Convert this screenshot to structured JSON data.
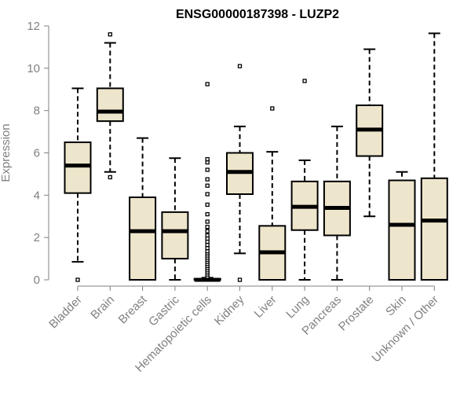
{
  "chart_data": {
    "type": "boxplot",
    "title": "ENSG00000187398 - LUZP2",
    "xlabel": "",
    "ylabel": "Expression",
    "ylim": [
      0,
      12
    ],
    "yticks": [
      0,
      2,
      4,
      6,
      8,
      10,
      12
    ],
    "box_fill": "#EEE6CC",
    "categories": [
      "Bladder",
      "Brain",
      "Breast",
      "Gastric",
      "Hematopoietic cells",
      "Kidney",
      "Liver",
      "Lung",
      "Pancreas",
      "Prostate",
      "Skin",
      "Unknown / Other"
    ],
    "boxes": [
      {
        "category": "Bladder",
        "q1": 4.1,
        "median": 5.4,
        "q3": 6.5,
        "whisker_low": 0.85,
        "whisker_high": 9.05,
        "outliers": [
          0.0
        ]
      },
      {
        "category": "Brain",
        "q1": 7.5,
        "median": 7.95,
        "q3": 9.05,
        "whisker_low": 5.1,
        "whisker_high": 11.2,
        "outliers": [
          4.85,
          11.6
        ]
      },
      {
        "category": "Breast",
        "q1": 0.0,
        "median": 2.3,
        "q3": 3.9,
        "whisker_low": 0.0,
        "whisker_high": 6.7,
        "outliers": []
      },
      {
        "category": "Gastric",
        "q1": 1.0,
        "median": 2.3,
        "q3": 3.2,
        "whisker_low": 0.0,
        "whisker_high": 5.75,
        "outliers": []
      },
      {
        "category": "Hematopoietic cells",
        "q1": 0.0,
        "median": 0.0,
        "q3": 0.05,
        "whisker_low": 0.0,
        "whisker_high": 0.1,
        "outliers": [
          0.15,
          0.25,
          0.35,
          0.45,
          0.55,
          0.65,
          0.75,
          0.85,
          0.95,
          1.05,
          1.15,
          1.25,
          1.35,
          1.5,
          1.65,
          1.8,
          1.95,
          2.1,
          2.3,
          2.5,
          2.75,
          3.1,
          3.55,
          4.05,
          4.45,
          4.75,
          5.2,
          5.55,
          5.7,
          9.25
        ]
      },
      {
        "category": "Kidney",
        "q1": 4.05,
        "median": 5.1,
        "q3": 6.0,
        "whisker_low": 1.25,
        "whisker_high": 7.25,
        "outliers": [
          0.0,
          10.1
        ]
      },
      {
        "category": "Liver",
        "q1": 0.0,
        "median": 1.3,
        "q3": 2.55,
        "whisker_low": 0.0,
        "whisker_high": 6.05,
        "outliers": [
          8.1
        ]
      },
      {
        "category": "Lung",
        "q1": 2.35,
        "median": 3.45,
        "q3": 4.65,
        "whisker_low": 0.0,
        "whisker_high": 5.65,
        "outliers": [
          9.4
        ]
      },
      {
        "category": "Pancreas",
        "q1": 2.1,
        "median": 3.4,
        "q3": 4.65,
        "whisker_low": 0.0,
        "whisker_high": 7.25,
        "outliers": []
      },
      {
        "category": "Prostate",
        "q1": 5.85,
        "median": 7.1,
        "q3": 8.25,
        "whisker_low": 3.0,
        "whisker_high": 10.9,
        "outliers": []
      },
      {
        "category": "Skin",
        "q1": 0.0,
        "median": 2.6,
        "q3": 4.7,
        "whisker_low": 0.0,
        "whisker_high": 5.1,
        "outliers": []
      },
      {
        "category": "Unknown / Other",
        "q1": 0.0,
        "median": 2.8,
        "q3": 4.8,
        "whisker_low": 0.0,
        "whisker_high": 11.65,
        "outliers": []
      }
    ]
  }
}
